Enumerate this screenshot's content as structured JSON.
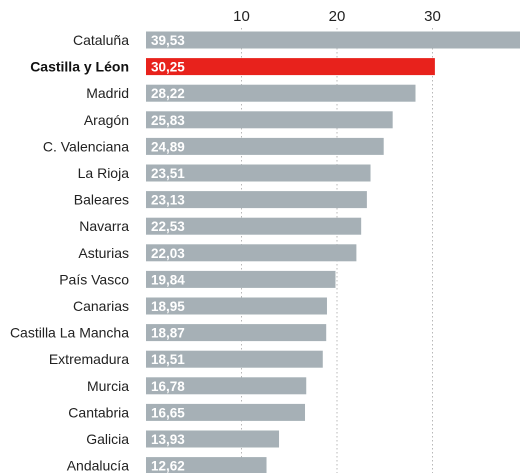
{
  "chart_data": {
    "type": "bar",
    "orientation": "horizontal",
    "categories": [
      "Cataluña",
      "Castilla y Léon",
      "Madrid",
      "Aragón",
      "C. Valenciana",
      "La Rioja",
      "Baleares",
      "Navarra",
      "Asturias",
      "País Vasco",
      "Canarias",
      "Castilla La Mancha",
      "Extremadura",
      "Murcia",
      "Cantabria",
      "Galicia",
      "Andalucía"
    ],
    "values": [
      39.53,
      30.25,
      28.22,
      25.83,
      24.89,
      23.51,
      23.13,
      22.53,
      22.03,
      19.84,
      18.95,
      18.87,
      18.51,
      16.78,
      16.65,
      13.93,
      12.62
    ],
    "value_labels": [
      "39,53",
      "30,25",
      "28,22",
      "25,83",
      "24,89",
      "23,51",
      "23,13",
      "22,53",
      "22,03",
      "19,84",
      "18,95",
      "18,87",
      "18,51",
      "16,78",
      "16,65",
      "13,93",
      "12,62"
    ],
    "highlight": "Castilla y Léon",
    "xticks": [
      10,
      20,
      30
    ],
    "xlim": [
      0,
      40
    ],
    "grid": "dotted vertical",
    "colors": {
      "bar": "#a6b0b6",
      "highlight": "#e8221c",
      "text": "#222222",
      "value_text": "#ffffff",
      "grid": "#b8b8b8"
    },
    "title": "",
    "xlabel": "",
    "ylabel": ""
  }
}
